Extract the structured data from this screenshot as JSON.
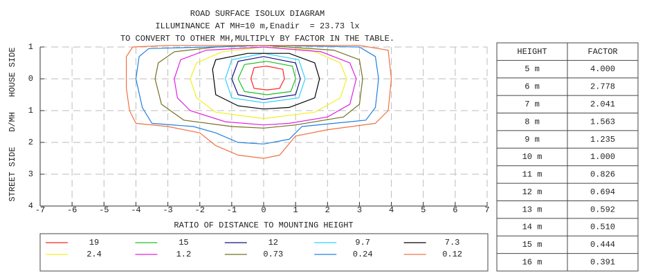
{
  "chart_data": {
    "type": "contour",
    "title": [
      "ROAD SURFACE ISOLUX DIAGRAM",
      "ILLUMINANCE AT MH=10 m,Enadir  = 23.73 lx",
      "TO CONVERT TO OTHER MH,MULTIPLY BY FACTOR IN THE TABLE."
    ],
    "xlabel": "RATIO OF DISTANCE TO MOUNTING HEIGHT",
    "ylabel": "STREET SIDE   D/MH   HOUSE SIDE",
    "xlim": [
      -7,
      7
    ],
    "ylim": [
      -1,
      4
    ],
    "xticks": [
      -7,
      -6,
      -5,
      -4,
      -3,
      -2,
      -1,
      0,
      1,
      2,
      3,
      4,
      5,
      6,
      7
    ],
    "yticks": [
      {
        "value": -1,
        "label": "1"
      },
      0,
      1,
      2,
      3,
      4
    ],
    "grid": true,
    "series": [
      {
        "name": "19",
        "color": "#ff2020",
        "x": [
          -0.4,
          -0.3,
          0.1,
          0.6,
          0.65,
          0.5,
          0.1,
          -0.3
        ],
        "y": [
          0,
          -0.35,
          -0.4,
          -0.3,
          0,
          0.3,
          0.35,
          0.3
        ]
      },
      {
        "name": "15",
        "color": "#20c020",
        "x": [
          -0.8,
          -0.6,
          0.1,
          0.9,
          1.0,
          0.85,
          0.1,
          -0.6
        ],
        "y": [
          0,
          -0.45,
          -0.55,
          -0.4,
          0,
          0.4,
          0.5,
          0.4
        ]
      },
      {
        "name": "12",
        "color": "#101080",
        "x": [
          -1.0,
          -0.8,
          0,
          1.0,
          1.15,
          1.0,
          0,
          -0.8
        ],
        "y": [
          0,
          -0.55,
          -0.7,
          -0.5,
          0,
          0.5,
          0.65,
          0.5
        ]
      },
      {
        "name": "9.7",
        "color": "#30d0ff",
        "x": [
          -1.2,
          -1.0,
          0,
          1.1,
          1.3,
          1.1,
          0,
          -1.0
        ],
        "y": [
          0,
          -0.6,
          -0.8,
          -0.6,
          0,
          0.6,
          0.75,
          0.6
        ]
      },
      {
        "name": "7.3",
        "color": "#000000",
        "x": [
          -1.6,
          -1.5,
          -0.5,
          0.8,
          1.6,
          1.75,
          1.6,
          0.8,
          0,
          -0.8,
          -1.5
        ],
        "y": [
          -0.3,
          -0.6,
          -0.8,
          -0.8,
          -0.5,
          0,
          0.6,
          0.9,
          0.95,
          0.85,
          0.5
        ]
      },
      {
        "name": "2.4",
        "color": "#f0f020",
        "x": [
          -2.3,
          -2.1,
          -1.3,
          0,
          1.5,
          2.4,
          2.6,
          2.4,
          1.6,
          0,
          -1.5,
          -2.1
        ],
        "y": [
          0,
          -0.5,
          -0.85,
          -1.0,
          -0.9,
          -0.5,
          0,
          0.6,
          1.05,
          1.25,
          1.05,
          0.6
        ]
      },
      {
        "name": "1.2",
        "color": "#e020e0",
        "x": [
          -2.8,
          -2.6,
          -1.8,
          0,
          1.8,
          2.7,
          2.9,
          2.7,
          2,
          0.8,
          0,
          -1.2,
          -2.3,
          -2.7
        ],
        "y": [
          0,
          -0.6,
          -0.9,
          -1.0,
          -0.85,
          -0.5,
          0,
          0.8,
          1.2,
          1.4,
          1.45,
          1.35,
          1.0,
          0.6
        ]
      },
      {
        "name": "0.73",
        "color": "#707020",
        "x": [
          -3.4,
          -3.3,
          -2.8,
          -1.5,
          0,
          2.2,
          3.0,
          3.1,
          3.0,
          2.5,
          1,
          0,
          -1,
          -2.5,
          -3.2
        ],
        "y": [
          0,
          -0.5,
          -0.85,
          -1.0,
          -1.05,
          -0.9,
          -0.6,
          0,
          0.8,
          1.2,
          1.45,
          1.55,
          1.5,
          1.3,
          0.8
        ]
      },
      {
        "name": "0.24",
        "color": "#2080e0",
        "x": [
          -4.0,
          -3.9,
          -3.6,
          0,
          3,
          3.5,
          3.6,
          3.5,
          3.2,
          1.2,
          0.8,
          0,
          -0.8,
          -1.5,
          -2.2,
          -3.5,
          -3.8
        ],
        "y": [
          0,
          -0.7,
          -0.95,
          -1.05,
          -1.0,
          -0.7,
          0,
          0.9,
          1.3,
          1.5,
          1.9,
          2.05,
          2.0,
          1.7,
          1.5,
          1.4,
          0.9
        ]
      },
      {
        "name": "0.12",
        "color": "#f07040",
        "x": [
          -4.3,
          -4.3,
          -4.1,
          -3,
          0,
          3,
          3.9,
          4.0,
          3.9,
          3.5,
          2,
          1,
          0.5,
          0,
          -0.8,
          -1.5,
          -2,
          -3,
          -4,
          -4.2
        ],
        "y": [
          0.3,
          -0.7,
          -1.0,
          -1.05,
          -1.05,
          -1.05,
          -0.9,
          0,
          1.0,
          1.4,
          1.6,
          1.8,
          2.4,
          2.5,
          2.4,
          2.1,
          1.7,
          1.5,
          1.4,
          1.0
        ]
      }
    ]
  },
  "table": {
    "header": [
      "HEIGHT",
      "FACTOR"
    ],
    "rows": [
      [
        "5 m",
        "4.000"
      ],
      [
        "6 m",
        "2.778"
      ],
      [
        "7 m",
        "2.041"
      ],
      [
        "8 m",
        "1.563"
      ],
      [
        "9 m",
        "1.235"
      ],
      [
        "10 m",
        "1.000"
      ],
      [
        "11 m",
        "0.826"
      ],
      [
        "12 m",
        "0.694"
      ],
      [
        "13 m",
        "0.592"
      ],
      [
        "14 m",
        "0.510"
      ],
      [
        "15 m",
        "0.444"
      ],
      [
        "16 m",
        "0.391"
      ]
    ]
  }
}
